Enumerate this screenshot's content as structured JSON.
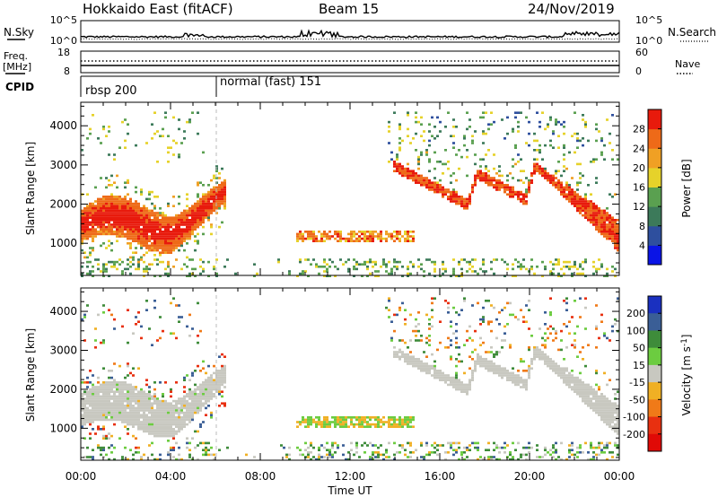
{
  "header": {
    "radar": "Hokkaido East (fitACF)",
    "beam": "Beam 15",
    "date": "24/Nov/2019"
  },
  "noise_panel": {
    "left_label": "N.Sky",
    "right_label": "N.Search",
    "left_ticks": [
      "10^5",
      "10^0"
    ],
    "right_ticks": [
      "10^5",
      "10^0"
    ]
  },
  "freq_panel": {
    "left_label_line1": "Freq.",
    "left_label_line2": "[MHz]",
    "right_label": "Nave",
    "left_ticks": [
      "18",
      "8"
    ],
    "right_ticks": [
      "60",
      "0"
    ]
  },
  "cpid_panel": {
    "label": "CPID",
    "modes": [
      {
        "name": "rbsp 200",
        "start_hour": 0
      },
      {
        "name": "normal (fast) 151",
        "start_hour": 6
      }
    ]
  },
  "chart_data": [
    {
      "type": "heatmap",
      "title": "Power",
      "xlabel": "Time UT",
      "ylabel": "Slant Range [km]",
      "x_ticks": [
        "00:00",
        "04:00",
        "08:00",
        "12:00",
        "16:00",
        "20:00",
        "00:00"
      ],
      "xlim_hours": [
        0,
        24
      ],
      "y_ticks": [
        1000,
        2000,
        3000,
        4000
      ],
      "ylim": [
        180,
        4600
      ],
      "colorbar": {
        "label": "Power [dB]",
        "ticks": [
          4,
          8,
          12,
          16,
          20,
          24,
          28
        ],
        "range": [
          0,
          32
        ],
        "colors": [
          "#0a14e6",
          "#2e4f9e",
          "#3c7a5a",
          "#5aa050",
          "#e6d22a",
          "#f0a024",
          "#ee6a18",
          "#e81a0c"
        ]
      },
      "features": [
        {
          "name": "early dense band",
          "hours": [
            0,
            6.3
          ],
          "range_km": [
            1000,
            2700
          ],
          "level_db": 26
        },
        {
          "name": "mid sea scatter",
          "hours": [
            9.6,
            14.8
          ],
          "range_km": [
            1050,
            1350
          ],
          "level_db": 22
        },
        {
          "name": "near-range echoes",
          "hours": [
            0,
            24
          ],
          "range_km": [
            250,
            600
          ],
          "level_db": 14
        },
        {
          "name": "late descending band",
          "hours": [
            13.9,
            24
          ],
          "range_km": [
            1100,
            3200
          ],
          "level_db": 26
        },
        {
          "name": "far-range scatter",
          "hours": [
            14,
            24
          ],
          "range_km": [
            3000,
            4300
          ],
          "level_db": 12
        }
      ]
    },
    {
      "type": "heatmap",
      "title": "Velocity",
      "xlabel": "Time UT",
      "ylabel": "Slant Range [km]",
      "x_ticks": [
        "00:00",
        "04:00",
        "08:00",
        "12:00",
        "16:00",
        "20:00",
        "00:00"
      ],
      "xlim_hours": [
        0,
        24
      ],
      "y_ticks": [
        1000,
        2000,
        3000,
        4000
      ],
      "ylim": [
        180,
        4600
      ],
      "colorbar": {
        "label_main": "Velocity [m s",
        "label_sup": "-1",
        "label_end": "]",
        "ticks": [
          "200",
          "100",
          "50",
          "15",
          "-15",
          "-50",
          "-100",
          "-200"
        ],
        "colors": [
          "#1a30c0",
          "#3a5e96",
          "#3e8c3a",
          "#6ccc40",
          "#c8c8c0",
          "#f0b024",
          "#f07a18",
          "#e83010",
          "#e00a06"
        ]
      },
      "features": [
        {
          "name": "early ground scatter",
          "hours": [
            0,
            6.3
          ],
          "range_km": [
            900,
            2600
          ],
          "velocity_ms": 0
        },
        {
          "name": "mid flow",
          "hours": [
            9.6,
            14.8
          ],
          "range_km": [
            1000,
            1350
          ],
          "velocity_ms": -40
        },
        {
          "name": "late ground scatter",
          "hours": [
            13.9,
            24
          ],
          "range_km": [
            1100,
            3200
          ],
          "velocity_ms": 0
        },
        {
          "name": "near-range flow",
          "hours": [
            9,
            24
          ],
          "range_km": [
            250,
            700
          ],
          "velocity_ms": 60
        }
      ]
    }
  ]
}
